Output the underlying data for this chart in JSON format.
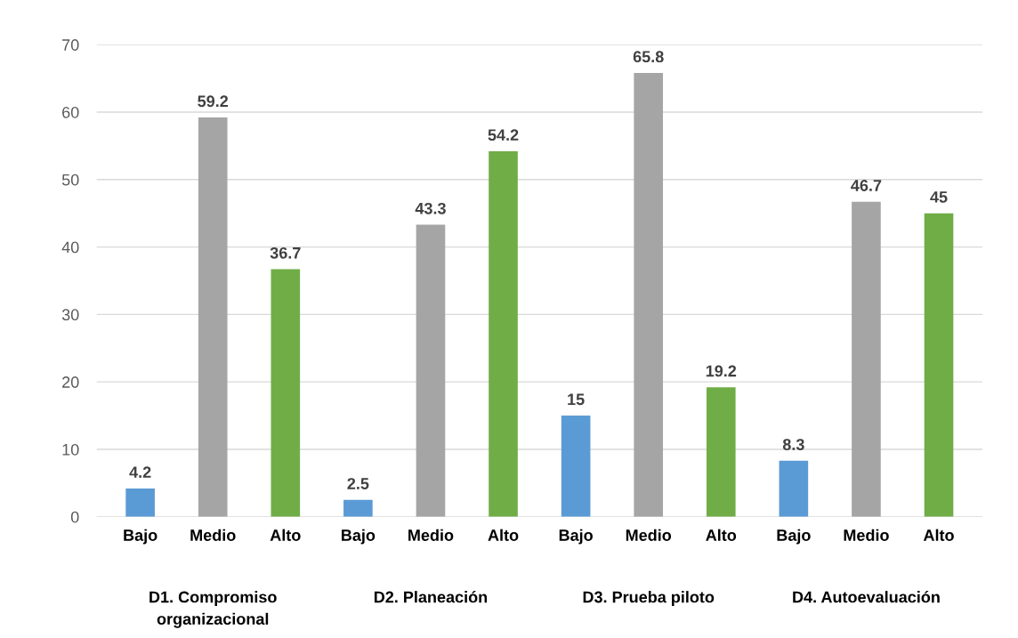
{
  "chart_data": {
    "type": "bar",
    "categories": [
      "Bajo",
      "Medio",
      "Alto",
      "Bajo",
      "Medio",
      "Alto",
      "Bajo",
      "Medio",
      "Alto",
      "Bajo",
      "Medio",
      "Alto"
    ],
    "values": [
      4.2,
      59.2,
      36.7,
      2.5,
      43.3,
      54.2,
      15,
      65.8,
      19.2,
      8.3,
      46.7,
      45
    ],
    "colors": [
      "#5b9bd5",
      "#a5a5a5",
      "#70ad47",
      "#5b9bd5",
      "#a5a5a5",
      "#70ad47",
      "#5b9bd5",
      "#a5a5a5",
      "#70ad47",
      "#5b9bd5",
      "#a5a5a5",
      "#70ad47"
    ],
    "annotations": [
      "D1. Compromiso\norganizacional",
      "D2. Planeación",
      "D3. Prueba piloto",
      "D4. Autoevaluación"
    ],
    "ylim": [
      0,
      70
    ],
    "yticks": [
      0,
      10,
      20,
      30,
      40,
      50,
      60,
      70
    ],
    "grid": "y",
    "data_labels": true
  }
}
